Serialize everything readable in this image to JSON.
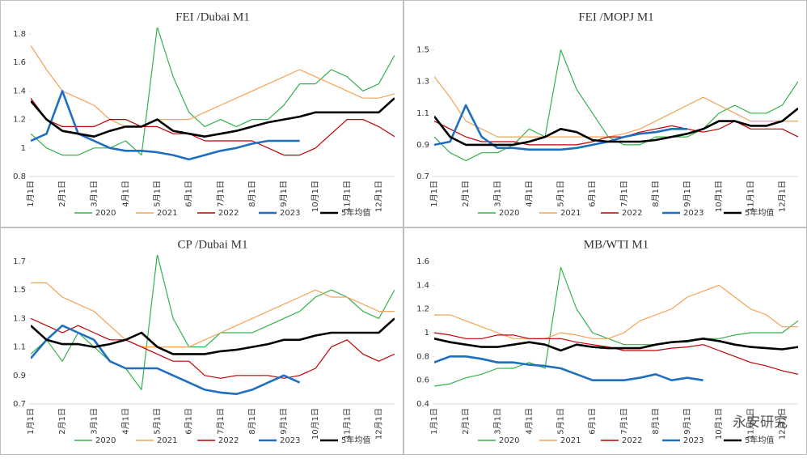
{
  "chart_data": [
    {
      "type": "line",
      "title": "FEI /Dubai M1",
      "categories": [
        "1月1日",
        null,
        "2月1日",
        null,
        "3月1日",
        null,
        "4月1日",
        null,
        "5月1日",
        null,
        "6月1日",
        null,
        "7月1日",
        null,
        "8月1日",
        null,
        "9月1日",
        null,
        "10月1日",
        null,
        "11月1日",
        null,
        "12月1日",
        null
      ],
      "ylim": [
        0.8,
        1.8
      ],
      "yticks": [
        0.8,
        1,
        1.2,
        1.4,
        1.6,
        1.8
      ],
      "series": [
        {
          "name": "2020",
          "color": "#33b34a",
          "values": [
            1.1,
            1.0,
            0.95,
            0.95,
            1.0,
            1.0,
            1.05,
            0.95,
            1.85,
            1.5,
            1.25,
            1.15,
            1.2,
            1.15,
            1.2,
            1.2,
            1.3,
            1.45,
            1.45,
            1.55,
            1.5,
            1.4,
            1.45,
            1.65
          ]
        },
        {
          "name": "2021",
          "color": "#f4a255",
          "values": [
            1.72,
            1.55,
            1.4,
            1.35,
            1.3,
            1.2,
            1.15,
            1.15,
            1.2,
            1.2,
            1.2,
            1.25,
            1.3,
            1.35,
            1.4,
            1.45,
            1.5,
            1.55,
            1.5,
            1.45,
            1.4,
            1.35,
            1.35,
            1.38
          ]
        },
        {
          "name": "2022",
          "color": "#c00000",
          "values": [
            1.35,
            1.2,
            1.15,
            1.15,
            1.15,
            1.2,
            1.2,
            1.15,
            1.15,
            1.1,
            1.1,
            1.05,
            1.05,
            1.05,
            1.05,
            1.0,
            0.95,
            0.95,
            1.0,
            1.1,
            1.2,
            1.2,
            1.15,
            1.08
          ]
        },
        {
          "name": "2023",
          "color": "#1f6fc0",
          "values": [
            1.05,
            1.1,
            1.4,
            1.1,
            1.05,
            1.0,
            0.98,
            0.98,
            0.97,
            0.95,
            0.92,
            0.95,
            0.98,
            1.0,
            1.03,
            1.05,
            1.05,
            1.05,
            null,
            null,
            null,
            null,
            null,
            null
          ]
        },
        {
          "name": "5年均值",
          "color": "#000000",
          "values": [
            1.33,
            1.2,
            1.12,
            1.1,
            1.08,
            1.12,
            1.15,
            1.15,
            1.2,
            1.12,
            1.1,
            1.08,
            1.1,
            1.12,
            1.15,
            1.18,
            1.2,
            1.22,
            1.25,
            1.25,
            1.25,
            1.25,
            1.25,
            1.35
          ]
        }
      ]
    },
    {
      "type": "line",
      "title": "FEI /MOPJ M1",
      "categories": [
        "1月1日",
        null,
        "2月1日",
        null,
        "3月1日",
        null,
        "4月1日",
        null,
        "5月1日",
        null,
        "6月1日",
        null,
        "7月1日",
        null,
        "8月1日",
        null,
        "9月1日",
        null,
        "10月1日",
        null,
        "11月1日",
        null,
        "12月1日",
        null
      ],
      "ylim": [
        0.7,
        1.6
      ],
      "yticks": [
        0.7,
        0.9,
        1.1,
        1.3,
        1.5
      ],
      "series": [
        {
          "name": "2020",
          "color": "#33b34a",
          "values": [
            0.95,
            0.85,
            0.8,
            0.85,
            0.85,
            0.9,
            1.0,
            0.95,
            1.5,
            1.25,
            1.1,
            0.95,
            0.9,
            0.9,
            0.95,
            0.95,
            0.95,
            1.0,
            1.1,
            1.15,
            1.1,
            1.1,
            1.15,
            1.3
          ]
        },
        {
          "name": "2021",
          "color": "#f4a255",
          "values": [
            1.33,
            1.2,
            1.05,
            1.0,
            0.95,
            0.95,
            0.95,
            0.95,
            0.95,
            0.95,
            0.95,
            0.95,
            0.97,
            1.0,
            1.05,
            1.1,
            1.15,
            1.2,
            1.15,
            1.1,
            1.05,
            1.05,
            1.05,
            1.05
          ]
        },
        {
          "name": "2022",
          "color": "#c00000",
          "values": [
            1.05,
            1.0,
            0.95,
            0.92,
            0.92,
            0.92,
            0.9,
            0.9,
            0.9,
            0.9,
            0.92,
            0.95,
            0.95,
            0.98,
            1.0,
            1.02,
            1.0,
            0.98,
            1.0,
            1.05,
            1.0,
            1.0,
            1.0,
            0.95
          ]
        },
        {
          "name": "2023",
          "color": "#1f6fc0",
          "values": [
            0.9,
            0.92,
            1.15,
            0.95,
            0.88,
            0.88,
            0.87,
            0.87,
            0.87,
            0.88,
            0.9,
            0.92,
            0.95,
            0.97,
            0.98,
            1.0,
            1.0,
            null,
            null,
            null,
            null,
            null,
            null,
            null
          ]
        },
        {
          "name": "5年均值",
          "color": "#000000",
          "values": [
            1.08,
            0.95,
            0.9,
            0.9,
            0.9,
            0.9,
            0.92,
            0.95,
            1.0,
            0.98,
            0.93,
            0.92,
            0.92,
            0.92,
            0.93,
            0.95,
            0.97,
            1.0,
            1.05,
            1.05,
            1.02,
            1.02,
            1.05,
            1.13
          ]
        }
      ]
    },
    {
      "type": "line",
      "title": "CP /Dubai M1",
      "categories": [
        "1月1日",
        null,
        "2月1日",
        null,
        "3月1日",
        null,
        "4月1日",
        null,
        "5月1日",
        null,
        "6月1日",
        null,
        "7月1日",
        null,
        "8月1日",
        null,
        "9月1日",
        null,
        "10月1日",
        null,
        "11月1日",
        null,
        "12月1日",
        null
      ],
      "ylim": [
        0.7,
        1.7
      ],
      "yticks": [
        0.7,
        0.9,
        1.1,
        1.3,
        1.5,
        1.7
      ],
      "series": [
        {
          "name": "2020",
          "color": "#33b34a",
          "values": [
            1.05,
            1.15,
            1.0,
            1.2,
            1.1,
            1.0,
            0.95,
            0.8,
            1.75,
            1.3,
            1.1,
            1.1,
            1.2,
            1.2,
            1.2,
            1.25,
            1.3,
            1.35,
            1.45,
            1.5,
            1.45,
            1.35,
            1.3,
            1.5
          ]
        },
        {
          "name": "2021",
          "color": "#f4a255",
          "values": [
            1.55,
            1.55,
            1.45,
            1.4,
            1.35,
            1.25,
            1.15,
            1.1,
            1.1,
            1.1,
            1.1,
            1.15,
            1.2,
            1.25,
            1.3,
            1.35,
            1.4,
            1.45,
            1.5,
            1.45,
            1.45,
            1.4,
            1.35,
            1.35
          ]
        },
        {
          "name": "2022",
          "color": "#c00000",
          "values": [
            1.3,
            1.25,
            1.2,
            1.25,
            1.2,
            1.15,
            1.15,
            1.1,
            1.05,
            1.0,
            1.0,
            0.9,
            0.88,
            0.9,
            0.9,
            0.9,
            0.88,
            0.9,
            0.95,
            1.1,
            1.15,
            1.05,
            1.0,
            1.05
          ]
        },
        {
          "name": "2023",
          "color": "#1f6fc0",
          "values": [
            1.02,
            1.15,
            1.25,
            1.2,
            1.15,
            1.0,
            0.95,
            0.95,
            0.95,
            0.9,
            0.85,
            0.8,
            0.78,
            0.77,
            0.8,
            0.85,
            0.9,
            0.85,
            null,
            null,
            null,
            null,
            null,
            null
          ]
        },
        {
          "name": "5年均值",
          "color": "#000000",
          "values": [
            1.25,
            1.15,
            1.12,
            1.12,
            1.1,
            1.12,
            1.15,
            1.2,
            1.1,
            1.05,
            1.05,
            1.05,
            1.07,
            1.08,
            1.1,
            1.12,
            1.15,
            1.15,
            1.18,
            1.2,
            1.2,
            1.2,
            1.2,
            1.3
          ]
        }
      ]
    },
    {
      "type": "line",
      "title": "MB/WTI M1",
      "categories": [
        "1月1日",
        null,
        "2月1日",
        null,
        "3月1日",
        null,
        "4月1日",
        null,
        "5月1日",
        null,
        "6月1日",
        null,
        "7月1日",
        null,
        "8月1日",
        null,
        "9月1日",
        null,
        "10月1日",
        null,
        "11月1日",
        null,
        "12月1日",
        null
      ],
      "ylim": [
        0.4,
        1.6
      ],
      "yticks": [
        0.4,
        0.6,
        0.8,
        1,
        1.2,
        1.4,
        1.6
      ],
      "series": [
        {
          "name": "2020",
          "color": "#33b34a",
          "values": [
            0.55,
            0.57,
            0.62,
            0.65,
            0.7,
            0.7,
            0.75,
            0.7,
            1.55,
            1.2,
            1.0,
            0.95,
            0.9,
            0.9,
            0.9,
            0.92,
            0.92,
            0.95,
            0.95,
            0.98,
            1.0,
            1.0,
            1.0,
            1.1
          ]
        },
        {
          "name": "2021",
          "color": "#f4a255",
          "values": [
            1.15,
            1.15,
            1.1,
            1.05,
            1.0,
            0.95,
            0.95,
            0.95,
            1.0,
            0.98,
            0.95,
            0.95,
            1.0,
            1.1,
            1.15,
            1.2,
            1.3,
            1.35,
            1.4,
            1.3,
            1.2,
            1.15,
            1.05,
            1.05
          ]
        },
        {
          "name": "2022",
          "color": "#c00000",
          "values": [
            1.0,
            0.98,
            0.95,
            0.95,
            0.98,
            0.98,
            0.95,
            0.95,
            0.95,
            0.92,
            0.9,
            0.88,
            0.85,
            0.85,
            0.85,
            0.87,
            0.88,
            0.9,
            0.85,
            0.8,
            0.75,
            0.72,
            0.68,
            0.65
          ]
        },
        {
          "name": "2023",
          "color": "#1f6fc0",
          "values": [
            0.75,
            0.8,
            0.8,
            0.78,
            0.75,
            0.75,
            0.73,
            0.72,
            0.7,
            0.65,
            0.6,
            0.6,
            0.6,
            0.62,
            0.65,
            0.6,
            0.62,
            0.6,
            null,
            null,
            null,
            null,
            null,
            null
          ]
        },
        {
          "name": "5年均值",
          "color": "#000000",
          "values": [
            0.95,
            0.92,
            0.9,
            0.88,
            0.88,
            0.9,
            0.92,
            0.9,
            0.85,
            0.9,
            0.88,
            0.87,
            0.87,
            0.87,
            0.9,
            0.92,
            0.93,
            0.95,
            0.93,
            0.9,
            0.88,
            0.87,
            0.86,
            0.88
          ]
        }
      ]
    }
  ],
  "watermark": "永安研究"
}
